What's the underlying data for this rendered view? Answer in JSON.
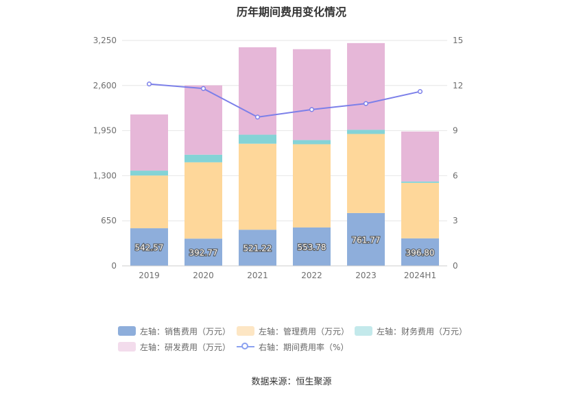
{
  "title": "历年期间费用变化情况",
  "source": "数据来源：恒生聚源",
  "chart_data": {
    "type": "bar",
    "stacked": true,
    "categories": [
      "2019",
      "2020",
      "2021",
      "2022",
      "2023",
      "2024H1"
    ],
    "series": [
      {
        "name": "左轴：销售费用（万元）",
        "axis": "left",
        "color": "#8eaedb",
        "values": [
          542.57,
          392.77,
          521.22,
          553.78,
          761.77,
          396.8
        ],
        "labels": [
          "542.57",
          "392.77",
          "521.22",
          "553.78",
          "761.77",
          "396.80"
        ]
      },
      {
        "name": "左轴：管理费用（万元）",
        "axis": "left",
        "color": "#fed79a",
        "values": [
          760,
          1100,
          1240,
          1200,
          1140,
          800
        ]
      },
      {
        "name": "左轴：财务费用（万元）",
        "axis": "left",
        "color": "#84d3d6",
        "values": [
          70,
          110,
          130,
          60,
          60,
          20
        ]
      },
      {
        "name": "左轴：研发费用（万元）",
        "axis": "left",
        "color": "#e6b7d8",
        "values": [
          810,
          1000,
          1260,
          1310,
          1250,
          720
        ]
      },
      {
        "name": "右轴：期间费用率（%）",
        "type": "line",
        "axis": "right",
        "color": "#7b7fe9",
        "values": [
          12.1,
          11.8,
          9.9,
          10.4,
          10.8,
          11.6
        ]
      }
    ],
    "left_axis": {
      "ticks": [
        "0",
        "650",
        "1,300",
        "1,950",
        "2,600",
        "3,250"
      ],
      "ylim": [
        0,
        3250
      ]
    },
    "right_axis": {
      "ticks": [
        "0",
        "3",
        "6",
        "9",
        "12",
        "15"
      ],
      "ylim": [
        0,
        15
      ]
    },
    "grid": true,
    "legend_position": "bottom"
  },
  "legend_colors": {
    "销售": "#8eaedb",
    "管理": "#fde6c4",
    "财务": "#c3e9eb",
    "研发": "#f3dcec"
  }
}
